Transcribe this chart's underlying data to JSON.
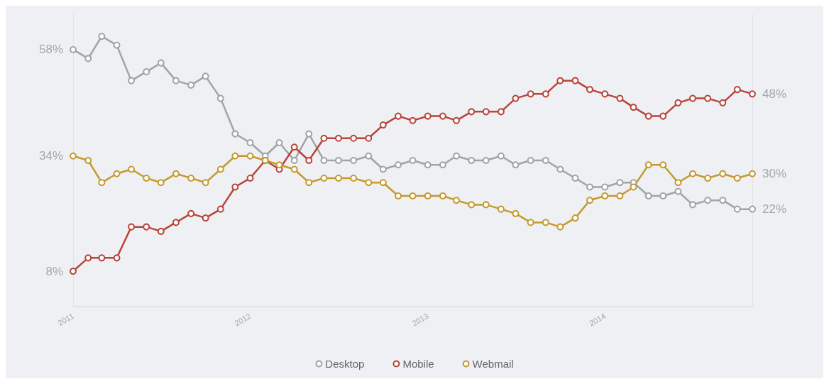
{
  "chart_data": {
    "type": "line",
    "x": [
      "2011-01",
      "2011-02",
      "2011-03",
      "2011-04",
      "2011-05",
      "2011-06",
      "2011-07",
      "2011-08",
      "2011-09",
      "2011-10",
      "2011-11",
      "2011-12",
      "2012-01",
      "2012-02",
      "2012-03",
      "2012-04",
      "2012-05",
      "2012-06",
      "2012-07",
      "2012-08",
      "2012-09",
      "2012-10",
      "2012-11",
      "2012-12",
      "2013-01",
      "2013-02",
      "2013-03",
      "2013-04",
      "2013-05",
      "2013-06",
      "2013-07",
      "2013-08",
      "2013-09",
      "2013-10",
      "2013-11",
      "2013-12",
      "2014-01",
      "2014-02",
      "2014-03",
      "2014-04",
      "2014-05",
      "2014-06",
      "2014-07",
      "2014-08",
      "2014-09",
      "2014-10",
      "2014-11"
    ],
    "series": [
      {
        "name": "Desktop",
        "color": "#9fa4a6",
        "values": [
          58,
          56,
          61,
          59,
          51,
          53,
          55,
          51,
          50,
          52,
          47,
          39,
          37,
          34,
          37,
          33,
          39,
          33,
          33,
          33,
          34,
          31,
          32,
          33,
          32,
          32,
          34,
          33,
          33,
          34,
          32,
          33,
          33,
          31,
          29,
          27,
          27,
          28,
          28,
          25,
          25,
          26,
          23,
          24,
          24,
          22,
          22
        ]
      },
      {
        "name": "Mobile",
        "color": "#b8443a",
        "values": [
          8,
          11,
          11,
          11,
          18,
          18,
          17,
          19,
          21,
          20,
          22,
          27,
          29,
          33,
          31,
          36,
          33,
          38,
          38,
          38,
          38,
          41,
          43,
          42,
          43,
          43,
          42,
          44,
          44,
          44,
          47,
          48,
          48,
          51,
          51,
          49,
          48,
          47,
          45,
          43,
          43,
          46,
          47,
          47,
          46,
          49,
          48
        ]
      },
      {
        "name": "Webmail",
        "color": "#c49a2e",
        "values": [
          34,
          33,
          28,
          30,
          31,
          29,
          28,
          30,
          29,
          28,
          31,
          34,
          34,
          33,
          32,
          31,
          28,
          29,
          29,
          29,
          28,
          28,
          25,
          25,
          25,
          25,
          24,
          23,
          23,
          22,
          21,
          19,
          19,
          18,
          20,
          24,
          25,
          25,
          27,
          32,
          32,
          28,
          30,
          29,
          30,
          29,
          30
        ]
      }
    ],
    "xlim": [
      "2011-01",
      "2014-11"
    ],
    "xticks": [
      {
        "value": "2011",
        "label": "2011"
      },
      {
        "value": "2012",
        "label": "2012"
      },
      {
        "value": "2013",
        "label": "2013"
      },
      {
        "value": "2014",
        "label": "2014"
      }
    ],
    "ylim": [
      0,
      66
    ],
    "yticks": [
      {
        "value": 8,
        "label": "8%"
      },
      {
        "value": 34,
        "label": "34%"
      },
      {
        "value": 58,
        "label": "58%"
      }
    ],
    "y2lim": [
      0,
      66
    ],
    "y2ticks": [
      {
        "value": 22,
        "label": "22%"
      },
      {
        "value": 30,
        "label": "30%"
      },
      {
        "value": 48,
        "label": "48%"
      }
    ],
    "grid": false,
    "legend": "bottom",
    "marker": "circle",
    "line_style": "solid"
  }
}
